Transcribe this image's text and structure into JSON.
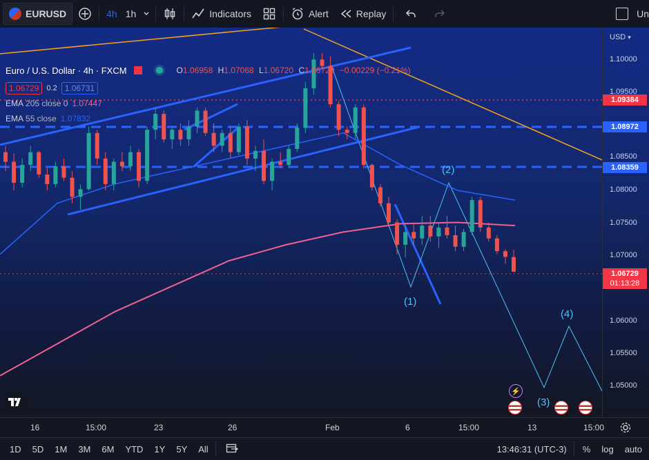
{
  "toolbar": {
    "symbol": "EURUSD",
    "timeframe_active": "4h",
    "timeframe": "1h",
    "indicators": "Indicators",
    "alert": "Alert",
    "replay": "Replay",
    "right_text": "Un"
  },
  "legend": {
    "title": "Euro / U.S. Dollar · 4h · FXCM",
    "o_label": "O",
    "o": "1.06958",
    "h_label": "H",
    "h": "1.07068",
    "l_label": "L",
    "l": "1.06720",
    "c_label": "C",
    "c": "1.06729",
    "change": "−0.00229 (−0.21%)",
    "bid": "1.06729",
    "spread": "0.2",
    "ask": "1.06731",
    "ema1_name": "EMA",
    "ema1_params": "205 close 0",
    "ema1_value": "1.07447",
    "ema2_name": "EMA",
    "ema2_params": "55 close",
    "ema2_value": "1.07832"
  },
  "price_scale": {
    "currency": "USD",
    "ticks": [
      "1.10000",
      "1.09500",
      "1.08500",
      "1.08000",
      "1.07500",
      "1.07000",
      "1.06000",
      "1.05500",
      "1.05000"
    ],
    "labels": [
      {
        "value": "1.09384",
        "color": "#f23645"
      },
      {
        "value": "1.08972",
        "color": "#2962ff"
      },
      {
        "value": "1.08359",
        "color": "#2962ff"
      },
      {
        "value": "1.06729",
        "color": "#f23645"
      }
    ],
    "countdown": "01:13:28"
  },
  "wave_labels": [
    "(1)",
    "(2)",
    "(3)",
    "(4)"
  ],
  "time_axis": [
    "16",
    "15:00",
    "23",
    "26",
    "Feb",
    "6",
    "15:00",
    "13",
    "15:00"
  ],
  "bottom": {
    "ranges": [
      "1D",
      "5D",
      "1M",
      "3M",
      "6M",
      "YTD",
      "1Y",
      "5Y",
      "All"
    ],
    "clock": "13:46:31 (UTC-3)",
    "percent": "%",
    "log": "log",
    "auto": "auto"
  },
  "colors": {
    "up": "#26a69a",
    "down": "#ef5350",
    "ema205": "#f06292",
    "ema55": "#2962ff",
    "trend": "#2962ff",
    "orange_line": "#f7a21b",
    "wave": "#4fc3f7"
  },
  "chart_data": {
    "type": "candlestick",
    "symbol": "EURUSD",
    "interval": "4h",
    "x_labels": [
      "16",
      "15:00",
      "23",
      "26",
      "Feb",
      "6",
      "15:00",
      "13",
      "15:00"
    ],
    "ylim": [
      1.0445,
      1.1055
    ],
    "ema205": [
      1.051,
      1.056,
      1.061,
      1.065,
      1.069,
      1.0715,
      1.0735,
      1.0748,
      1.075,
      1.0745
    ],
    "ema55": [
      1.07,
      1.078,
      1.081,
      1.083,
      1.085,
      1.087,
      1.089,
      1.084,
      1.08,
      1.0785
    ],
    "candles": [
      [
        1.086,
        1.087,
        1.083,
        1.0845
      ],
      [
        1.0845,
        1.0858,
        1.08,
        1.0812
      ],
      [
        1.0812,
        1.085,
        1.0805,
        1.084
      ],
      [
        1.084,
        1.087,
        1.083,
        1.086
      ],
      [
        1.086,
        1.0862,
        1.082,
        1.0825
      ],
      [
        1.0825,
        1.0835,
        1.08,
        1.081
      ],
      [
        1.081,
        1.0845,
        1.0805,
        1.0838
      ],
      [
        1.0838,
        1.085,
        1.0815,
        1.082
      ],
      [
        1.082,
        1.083,
        1.078,
        1.079
      ],
      [
        1.079,
        1.081,
        1.077,
        1.0802
      ],
      [
        1.0802,
        1.09,
        1.08,
        1.089
      ],
      [
        1.089,
        1.0895,
        1.084,
        1.085
      ],
      [
        1.085,
        1.086,
        1.08,
        1.081
      ],
      [
        1.081,
        1.085,
        1.08,
        1.0845
      ],
      [
        1.0845,
        1.086,
        1.083,
        1.0838
      ],
      [
        1.0838,
        1.087,
        1.083,
        1.086
      ],
      [
        1.086,
        1.0865,
        1.0805,
        1.0815
      ],
      [
        1.0815,
        1.09,
        1.081,
        1.0895
      ],
      [
        1.0895,
        1.093,
        1.088,
        1.092
      ],
      [
        1.092,
        1.0925,
        1.0875,
        1.088
      ],
      [
        1.088,
        1.09,
        1.0865,
        1.0895
      ],
      [
        1.0895,
        1.0905,
        1.087,
        1.088
      ],
      [
        1.088,
        1.091,
        1.087,
        1.09
      ],
      [
        1.09,
        1.093,
        1.089,
        1.0925
      ],
      [
        1.0925,
        1.093,
        1.0885,
        1.089
      ],
      [
        1.089,
        1.0905,
        1.086,
        1.087
      ],
      [
        1.087,
        1.0895,
        1.086,
        1.089
      ],
      [
        1.089,
        1.09,
        1.085,
        1.086
      ],
      [
        1.086,
        1.0905,
        1.0855,
        1.09
      ],
      [
        1.09,
        1.091,
        1.084,
        1.085
      ],
      [
        1.085,
        1.087,
        1.083,
        1.0862
      ],
      [
        1.0862,
        1.088,
        1.081,
        1.0815
      ],
      [
        1.0815,
        1.085,
        1.08,
        1.0845
      ],
      [
        1.0845,
        1.086,
        1.0835,
        1.084
      ],
      [
        1.084,
        1.087,
        1.0835,
        1.0865
      ],
      [
        1.0865,
        1.0905,
        1.086,
        1.0898
      ],
      [
        1.0898,
        1.097,
        1.089,
        1.096
      ],
      [
        1.096,
        1.1015,
        1.095,
        1.1005
      ],
      [
        1.1005,
        1.1015,
        1.099,
        1.0995
      ],
      [
        1.0995,
        1.101,
        1.093,
        1.0935
      ],
      [
        1.0935,
        1.094,
        1.0885,
        1.0895
      ],
      [
        1.0895,
        1.09,
        1.088,
        1.089
      ],
      [
        1.089,
        1.0935,
        1.088,
        1.093
      ],
      [
        1.093,
        1.0935,
        1.0835,
        1.084
      ],
      [
        1.084,
        1.0842,
        1.08,
        1.0805
      ],
      [
        1.0805,
        1.081,
        1.0775,
        1.078
      ],
      [
        1.078,
        1.079,
        1.0745,
        1.075
      ],
      [
        1.075,
        1.0755,
        1.07,
        1.0715
      ],
      [
        1.0715,
        1.0745,
        1.0695,
        1.0735
      ],
      [
        1.0735,
        1.075,
        1.0715,
        1.0725
      ],
      [
        1.0725,
        1.076,
        1.0715,
        1.0745
      ],
      [
        1.0745,
        1.076,
        1.072,
        1.0728
      ],
      [
        1.0728,
        1.075,
        1.071,
        1.0742
      ],
      [
        1.0742,
        1.076,
        1.0725,
        1.073
      ],
      [
        1.073,
        1.0745,
        1.0705,
        1.0712
      ],
      [
        1.0712,
        1.074,
        1.0705,
        1.0735
      ],
      [
        1.0735,
        1.079,
        1.073,
        1.0785
      ],
      [
        1.0785,
        1.079,
        1.0735,
        1.0742
      ],
      [
        1.0742,
        1.075,
        1.072,
        1.0725
      ],
      [
        1.0725,
        1.073,
        1.07,
        1.0705
      ],
      [
        1.0705,
        1.0708,
        1.0685,
        1.0696
      ],
      [
        1.06958,
        1.07068,
        1.0672,
        1.06729
      ]
    ]
  }
}
